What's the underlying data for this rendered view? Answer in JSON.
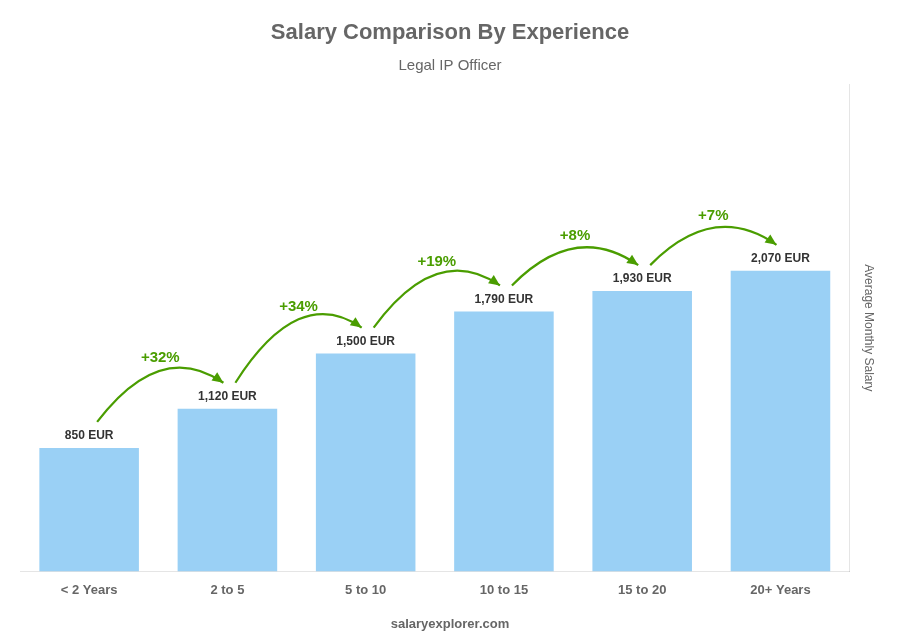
{
  "chart_data": {
    "type": "bar",
    "title": "Salary Comparison By Experience",
    "subtitle": "Legal IP Officer",
    "ylabel": "Average Monthly Salary",
    "footer": "salaryexplorer.com",
    "categories": [
      "< 2 Years",
      "2 to 5",
      "5 to 10",
      "10 to 15",
      "15 to 20",
      "20+ Years"
    ],
    "values": [
      850,
      1120,
      1500,
      1790,
      1930,
      2070
    ],
    "value_labels": [
      "850 EUR",
      "1,120 EUR",
      "1,500 EUR",
      "1,790 EUR",
      "1,930 EUR",
      "2,070 EUR"
    ],
    "data_labels": true,
    "annotations": [
      "+32%",
      "+34%",
      "+19%",
      "+8%",
      "+7%"
    ],
    "ylim": [
      0,
      3353.4
    ],
    "grid": false,
    "tick_labels": "x"
  }
}
